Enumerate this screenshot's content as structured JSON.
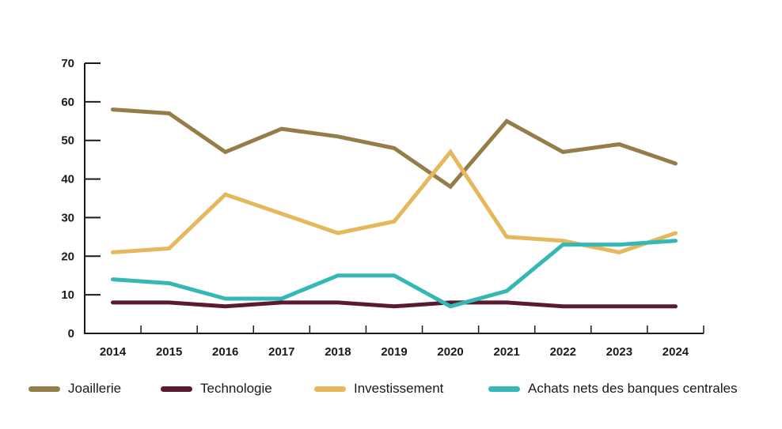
{
  "chart_data": {
    "type": "line",
    "title": "",
    "xlabel": "",
    "ylabel": "",
    "x": [
      "2014",
      "2015",
      "2016",
      "2017",
      "2018",
      "2019",
      "2020",
      "2021",
      "2022",
      "2023",
      "2024"
    ],
    "categories": [
      "2014",
      "2015",
      "2016",
      "2017",
      "2018",
      "2019",
      "2020",
      "2021",
      "2022",
      "2023",
      "2024"
    ],
    "ylim": [
      0,
      70
    ],
    "yticks": [
      0,
      10,
      20,
      30,
      40,
      50,
      60,
      70
    ],
    "grid": false,
    "legend_position": "bottom",
    "series": [
      {
        "name": "Joaillerie",
        "color": "#957d4a",
        "values": [
          58,
          57,
          47,
          53,
          51,
          48,
          38,
          55,
          47,
          49,
          44
        ]
      },
      {
        "name": "Technologie",
        "color": "#5a1a31",
        "values": [
          8,
          8,
          7,
          8,
          8,
          7,
          8,
          8,
          7,
          7,
          7
        ]
      },
      {
        "name": "Investissement",
        "color": "#e5b85c",
        "values": [
          21,
          22,
          36,
          31,
          26,
          29,
          47,
          25,
          24,
          21,
          26
        ]
      },
      {
        "name": "Achats nets des banques centrales",
        "color": "#35b8b5",
        "values": [
          14,
          13,
          9,
          9,
          15,
          15,
          7,
          11,
          23,
          23,
          24
        ]
      }
    ]
  },
  "legend": {
    "items": [
      {
        "label": "Joaillerie",
        "color": "#957d4a"
      },
      {
        "label": "Technologie",
        "color": "#5a1a31"
      },
      {
        "label": "Investissement",
        "color": "#e5b85c"
      },
      {
        "label": "Achats nets des banques centrales",
        "color": "#35b8b5"
      }
    ]
  }
}
